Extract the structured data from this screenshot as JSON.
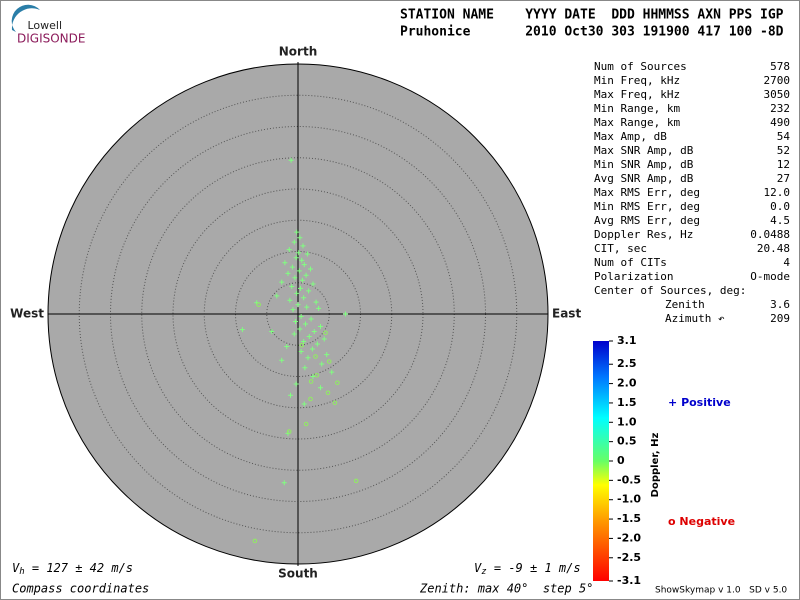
{
  "logo": {
    "top": "Lowell",
    "bottom": "DIGISONDE"
  },
  "header": {
    "labels": "STATION NAME    YYYY DATE  DDD HHMMSS AXN PPS IGP",
    "values": "Pruhonice       2010 Oct30 303 191900 417 100 -8D"
  },
  "stats": [
    [
      "Num of Sources",
      "578"
    ],
    [
      "Min Freq, kHz",
      "2700"
    ],
    [
      "Max Freq, kHz",
      "3050"
    ],
    [
      "Min Range, km",
      "232"
    ],
    [
      "Max Range, km",
      "490"
    ],
    [
      "Max Amp, dB",
      "54"
    ],
    [
      "Max SNR Amp, dB",
      "52"
    ],
    [
      "Min SNR Amp, dB",
      "12"
    ],
    [
      "Avg SNR Amp, dB",
      "27"
    ],
    [
      "Max RMS Err, deg",
      "12.0"
    ],
    [
      "Min RMS Err, deg",
      "0.0"
    ],
    [
      "Avg RMS Err, deg",
      "4.5"
    ],
    [
      "Doppler Res, Hz",
      "0.0488"
    ],
    [
      "CIT, sec",
      "20.48"
    ],
    [
      "Num of CITs",
      "4"
    ],
    [
      "Polarization",
      "O-mode"
    ]
  ],
  "center": {
    "label": "Center of Sources, deg:",
    "rows": [
      [
        "Zenith",
        "3.6"
      ],
      [
        "Azimuth ↶",
        "209"
      ]
    ]
  },
  "footer": {
    "vh": {
      "symbol": "V",
      "sub": "h",
      "text": " = 127 ± 42 m/s"
    },
    "vz": {
      "symbol": "V",
      "sub": "z",
      "text": " = -9 ± 1 m/s"
    },
    "coords": "Compass coordinates",
    "zenith": "Zenith: max 40°  step 5°",
    "version": "ShowSkymap v 1.0   SD v 5.0"
  },
  "chart_data": {
    "type": "polar-scatter",
    "directions": {
      "north": "North",
      "south": "South",
      "east": "East",
      "west": "West"
    },
    "rlim": [
      0,
      40
    ],
    "rticks": [
      5,
      10,
      15,
      20,
      25,
      30,
      35
    ],
    "series": [
      {
        "name": "Positive",
        "marker": "+",
        "color": "#80ff80",
        "x": [
          -1.1,
          -0.2,
          0.3,
          -0.6,
          0.8,
          -1.4,
          0.1,
          1.5,
          -0.3,
          0.6,
          -2.1,
          1.0,
          -0.9,
          2.0,
          0.2,
          -1.6,
          1.3,
          -0.5,
          0.7,
          -2.6,
          2.4,
          -1.0,
          0.4,
          1.7,
          -0.2,
          -3.4,
          0.9,
          -1.3,
          2.9,
          0.0,
          -6.6,
          1.4,
          -0.8,
          3.3,
          7.6,
          0.5,
          -8.9,
          2.1,
          -0.4,
          1.2,
          3.6,
          0.3,
          2.6,
          -0.6,
          1.8,
          4.2,
          0.9,
          3.1,
          -1.8,
          2.3,
          0.5,
          4.6,
          1.6,
          -2.6,
          3.8,
          1.1,
          5.4,
          2.4,
          -0.3,
          3.6,
          -1.2,
          1.0,
          -2.2,
          -1.6,
          -4.2
        ],
        "y": [
          24.6,
          13.1,
          12.2,
          11.5,
          10.9,
          10.3,
          9.8,
          9.6,
          9.0,
          8.6,
          8.2,
          7.9,
          7.5,
          7.2,
          6.9,
          6.5,
          6.2,
          5.8,
          5.4,
          5.1,
          4.8,
          4.4,
          4.1,
          3.7,
          3.3,
          2.9,
          2.6,
          2.2,
          1.9,
          1.5,
          1.8,
          1.1,
          0.7,
          0.9,
          0.0,
          -0.4,
          -2.5,
          -0.8,
          -1.2,
          -1.6,
          -2.0,
          -2.4,
          -2.8,
          -3.2,
          -3.6,
          -4.0,
          -4.4,
          -4.8,
          -5.2,
          -5.6,
          -6.0,
          -6.5,
          -7.0,
          -7.4,
          -8.0,
          -8.6,
          -9.3,
          -10.0,
          -11.2,
          -11.8,
          -13.0,
          -14.4,
          -27.0,
          -19.1,
          -2.8
        ]
      },
      {
        "name": "Negative",
        "marker": "o",
        "color": "#90ee60",
        "x": [
          5.9,
          4.8,
          2.0,
          6.3,
          3.0,
          5.0,
          0.6,
          2.8,
          -1.4,
          9.3,
          -6.9,
          1.3,
          -6.3,
          4.4,
          2.1
        ],
        "y": [
          -14.2,
          -12.6,
          -13.6,
          -11.0,
          -9.8,
          -7.6,
          -5.0,
          -6.8,
          -18.8,
          -26.7,
          -36.3,
          -17.6,
          1.5,
          -3.0,
          -10.8
        ]
      }
    ],
    "colorbar": {
      "label": "Doppler, Hz",
      "clim": [
        -3.1,
        3.1
      ],
      "ticks": [
        3.1,
        2.5,
        {
          "value": 2,
          "label": "2.0"
        },
        1.5,
        {
          "value": 1,
          "label": "1.0"
        },
        0.5,
        0,
        -0.5,
        {
          "value": -1,
          "label": "-1.0"
        },
        -1.5,
        {
          "value": -2,
          "label": "-2.0"
        },
        -2.5,
        -3.1
      ]
    }
  }
}
